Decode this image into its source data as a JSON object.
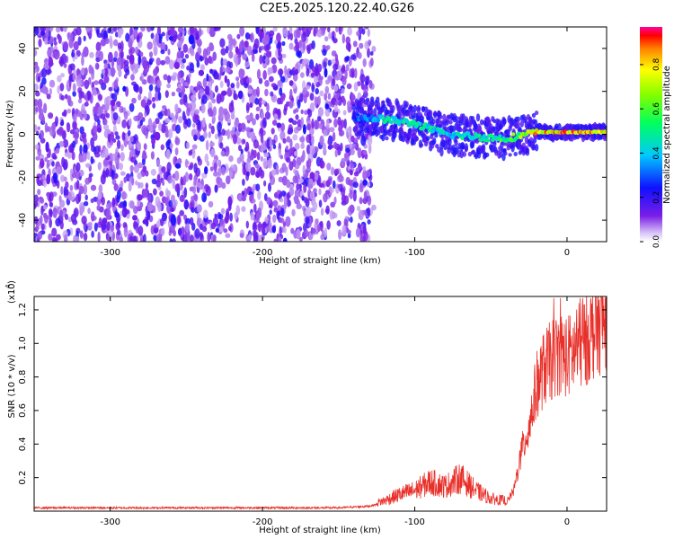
{
  "title": "C2E5.2025.120.22.40.G26",
  "chart_data": [
    {
      "type": "heatmap",
      "xlabel": "Height of straight line (km)",
      "ylabel": "Frequency (Hz)",
      "xlim": [
        -350,
        26
      ],
      "ylim": [
        -50,
        50
      ],
      "xticks": [
        -300,
        -200,
        -100,
        0
      ],
      "yticks": [
        -40,
        -20,
        0,
        20,
        40
      ],
      "colorbar": {
        "label": "Normalized spectral amplitude",
        "range": [
          0,
          0.97
        ],
        "ticks": [
          0.0,
          0.2,
          0.4,
          0.6,
          0.8
        ],
        "colormap": "rainbow"
      },
      "noise_region_x": [
        -350,
        -128
      ],
      "signal_track": {
        "x": [
          -140,
          -120,
          -100,
          -80,
          -60,
          -40,
          -20,
          0,
          26
        ],
        "frequency": [
          8,
          7,
          5,
          0,
          -1,
          -2,
          1,
          1,
          1
        ],
        "amplitude": [
          0.3,
          0.5,
          0.55,
          0.5,
          0.55,
          0.6,
          0.9,
          0.95,
          0.9
        ]
      }
    },
    {
      "type": "line",
      "xlabel": "Height of straight line (km)",
      "ylabel": "SNR (10 * v/v)",
      "y_scale_label": "(x10",
      "y_scale_exp": "4",
      "color": "#e8302a",
      "xlim": [
        -350,
        26
      ],
      "ylim": [
        0,
        1.28
      ],
      "xticks": [
        -300,
        -200,
        -100,
        0
      ],
      "yticks": [
        0.2,
        0.4,
        0.6,
        0.8,
        1.0,
        1.2
      ],
      "series": [
        {
          "x": [
            -350,
            -300,
            -250,
            -200,
            -150,
            -130,
            -120,
            -110,
            -100,
            -90,
            -80,
            -70,
            -60,
            -50,
            -40,
            -35,
            -30,
            -25,
            -20,
            -15,
            -10,
            -5,
            0,
            5,
            10,
            15,
            20,
            26
          ],
          "y": [
            0.02,
            0.02,
            0.02,
            0.02,
            0.02,
            0.03,
            0.05,
            0.08,
            0.1,
            0.14,
            0.12,
            0.16,
            0.1,
            0.06,
            0.05,
            0.12,
            0.35,
            0.5,
            0.75,
            0.85,
            0.9,
            0.95,
            0.92,
            0.95,
            1.0,
            1.05,
            1.1,
            1.15
          ]
        }
      ]
    }
  ]
}
